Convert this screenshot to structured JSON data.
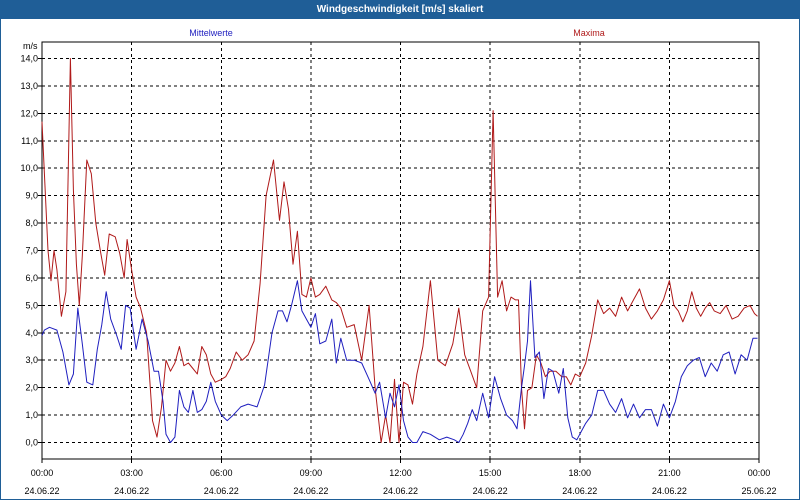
{
  "window": {
    "title": "Windgeschwindigkeit [m/s] skaliert"
  },
  "colors": {
    "mean": "#1f1fbf",
    "max": "#b01a1a",
    "title_bg": "#1f5e97",
    "grid": "#000000"
  },
  "chart_data": {
    "type": "line",
    "title": "Windgeschwindigkeit [m/s] skaliert",
    "ylabel": "m/s",
    "ylim": [
      -0.6,
      14.6
    ],
    "yticks": [
      "0,0",
      "1,0",
      "2,0",
      "3,0",
      "4,0",
      "5,0",
      "6,0",
      "7,0",
      "8,0",
      "9,0",
      "10,0",
      "11,0",
      "12,0",
      "13,0",
      "14,0"
    ],
    "xlim": [
      0,
      24
    ],
    "xticks": [
      {
        "time": "00:00",
        "date": "24.06.22"
      },
      {
        "time": "03:00",
        "date": "24.06.22"
      },
      {
        "time": "06:00",
        "date": "24.06.22"
      },
      {
        "time": "09:00",
        "date": "24.06.22"
      },
      {
        "time": "12:00",
        "date": "24.06.22"
      },
      {
        "time": "15:00",
        "date": "24.06.22"
      },
      {
        "time": "18:00",
        "date": "24.06.22"
      },
      {
        "time": "21:00",
        "date": "24.06.22"
      },
      {
        "time": "00:00",
        "date": "25.06.22"
      }
    ],
    "series": [
      {
        "name": "Mittelwerte",
        "x": [
          0,
          0.08,
          0.25,
          0.5,
          0.7,
          0.9,
          1.05,
          1.2,
          1.35,
          1.5,
          1.7,
          1.85,
          2.0,
          2.15,
          2.3,
          2.5,
          2.65,
          2.8,
          2.95,
          3.15,
          3.35,
          3.55,
          3.75,
          3.9,
          4.05,
          4.15,
          4.3,
          4.45,
          4.6,
          4.75,
          4.9,
          5.05,
          5.2,
          5.35,
          5.5,
          5.65,
          5.8,
          6.0,
          6.2,
          6.4,
          6.65,
          6.9,
          7.2,
          7.45,
          7.7,
          7.9,
          8.05,
          8.2,
          8.35,
          8.55,
          8.7,
          8.85,
          9.0,
          9.15,
          9.3,
          9.5,
          9.7,
          9.85,
          10.0,
          10.2,
          10.45,
          10.7,
          10.95,
          11.15,
          11.3,
          11.5,
          11.65,
          11.8,
          11.95,
          12.1,
          12.25,
          12.4,
          12.55,
          12.75,
          13.0,
          13.3,
          13.55,
          13.8,
          13.95,
          14.1,
          14.25,
          14.4,
          14.55,
          14.75,
          14.95,
          15.15,
          15.35,
          15.55,
          15.75,
          15.9,
          16.05,
          16.15,
          16.25,
          16.35,
          16.5,
          16.65,
          16.8,
          16.95,
          17.1,
          17.3,
          17.45,
          17.6,
          17.75,
          17.9,
          18.05,
          18.2,
          18.4,
          18.6,
          18.8,
          19.0,
          19.2,
          19.4,
          19.6,
          19.8,
          20.0,
          20.2,
          20.4,
          20.6,
          20.8,
          21.0,
          21.2,
          21.4,
          21.6,
          21.8,
          22.0,
          22.2,
          22.4,
          22.6,
          22.8,
          23.0,
          23.2,
          23.4,
          23.6,
          23.8,
          23.95
        ],
        "values": [
          3.9,
          4.1,
          4.2,
          4.1,
          3.3,
          2.1,
          2.5,
          4.9,
          3.6,
          2.2,
          2.1,
          3.4,
          4.3,
          5.5,
          4.5,
          3.9,
          3.4,
          5.0,
          4.9,
          3.4,
          4.5,
          3.7,
          2.6,
          2.6,
          1.5,
          0.3,
          0.0,
          0.2,
          1.9,
          1.3,
          1.1,
          1.9,
          1.1,
          1.2,
          1.5,
          2.2,
          1.5,
          1.0,
          0.8,
          1.0,
          1.3,
          1.4,
          1.3,
          2.1,
          4.0,
          4.8,
          4.8,
          4.4,
          5.0,
          5.9,
          4.8,
          4.5,
          4.2,
          4.7,
          3.6,
          3.7,
          4.5,
          2.9,
          3.8,
          3.0,
          3.0,
          2.9,
          2.3,
          1.8,
          2.2,
          0.9,
          1.8,
          1.3,
          2.1,
          0.8,
          0.2,
          0.0,
          0.0,
          0.4,
          0.3,
          0.1,
          0.2,
          0.1,
          0.0,
          0.3,
          0.7,
          1.2,
          0.8,
          1.8,
          0.9,
          2.4,
          1.6,
          1.0,
          0.8,
          0.5,
          2.0,
          2.8,
          3.7,
          5.9,
          3.1,
          3.3,
          1.6,
          2.7,
          2.6,
          1.8,
          2.7,
          0.9,
          0.2,
          0.1,
          0.4,
          0.7,
          1.0,
          1.9,
          1.9,
          1.4,
          1.1,
          1.6,
          0.9,
          1.4,
          0.9,
          1.2,
          1.2,
          0.6,
          1.4,
          0.9,
          1.5,
          2.4,
          2.8,
          3.0,
          3.1,
          2.4,
          2.9,
          2.6,
          3.2,
          3.3,
          2.5,
          3.2,
          3.0,
          3.8,
          3.8
        ]
      },
      {
        "name": "Maxima",
        "x": [
          0,
          0.08,
          0.2,
          0.3,
          0.4,
          0.5,
          0.65,
          0.8,
          0.95,
          1.05,
          1.15,
          1.25,
          1.35,
          1.5,
          1.65,
          1.8,
          1.95,
          2.1,
          2.25,
          2.45,
          2.6,
          2.75,
          2.85,
          3.0,
          3.15,
          3.3,
          3.5,
          3.7,
          3.85,
          4.0,
          4.15,
          4.3,
          4.45,
          4.6,
          4.75,
          4.9,
          5.05,
          5.2,
          5.35,
          5.5,
          5.65,
          5.8,
          6.0,
          6.15,
          6.3,
          6.5,
          6.7,
          6.9,
          7.1,
          7.3,
          7.5,
          7.75,
          7.95,
          8.1,
          8.25,
          8.4,
          8.55,
          8.7,
          8.85,
          9.0,
          9.15,
          9.3,
          9.5,
          9.7,
          9.85,
          10.0,
          10.2,
          10.45,
          10.7,
          10.95,
          11.15,
          11.35,
          11.5,
          11.65,
          11.8,
          11.95,
          12.1,
          12.25,
          12.4,
          12.55,
          12.75,
          13.0,
          13.25,
          13.5,
          13.75,
          13.95,
          14.15,
          14.35,
          14.55,
          14.75,
          14.95,
          15.1,
          15.25,
          15.4,
          15.55,
          15.7,
          15.85,
          15.95,
          16.05,
          16.15,
          16.25,
          16.4,
          16.55,
          16.7,
          16.85,
          17.0,
          17.2,
          17.4,
          17.55,
          17.7,
          17.85,
          18.0,
          18.2,
          18.4,
          18.6,
          18.8,
          19.0,
          19.2,
          19.4,
          19.6,
          19.8,
          20.0,
          20.2,
          20.4,
          20.6,
          20.8,
          21.0,
          21.15,
          21.3,
          21.45,
          21.6,
          21.75,
          21.9,
          22.05,
          22.2,
          22.35,
          22.5,
          22.7,
          22.9,
          23.1,
          23.3,
          23.5,
          23.7,
          23.85,
          23.95
        ],
        "values": [
          11.7,
          9.8,
          7.0,
          5.9,
          7.0,
          6.3,
          4.6,
          5.5,
          14.0,
          9.2,
          6.5,
          5.0,
          6.8,
          10.3,
          9.8,
          8.0,
          7.0,
          6.1,
          7.6,
          7.5,
          6.9,
          6.0,
          7.4,
          6.3,
          5.3,
          4.9,
          4.0,
          0.8,
          0.2,
          1.3,
          3.0,
          2.6,
          2.9,
          3.5,
          2.8,
          2.9,
          2.7,
          2.5,
          3.5,
          3.2,
          2.5,
          2.2,
          2.3,
          2.4,
          2.7,
          3.3,
          3.0,
          3.2,
          3.7,
          5.8,
          9.0,
          10.3,
          8.1,
          9.5,
          8.5,
          6.5,
          7.7,
          5.4,
          5.3,
          6.0,
          5.3,
          5.4,
          5.7,
          5.2,
          5.1,
          4.9,
          4.2,
          4.3,
          3.0,
          5.0,
          2.0,
          0.0,
          1.0,
          0.0,
          2.3,
          0.0,
          2.2,
          2.1,
          1.4,
          2.5,
          3.5,
          5.9,
          3.0,
          2.8,
          3.6,
          4.9,
          3.2,
          2.6,
          2.0,
          4.8,
          5.3,
          12.1,
          5.3,
          5.9,
          4.8,
          5.3,
          5.2,
          5.2,
          2.0,
          0.5,
          1.9,
          2.0,
          3.2,
          2.9,
          2.4,
          2.6,
          2.6,
          2.4,
          2.4,
          2.1,
          2.5,
          2.4,
          2.9,
          3.9,
          5.2,
          4.7,
          4.9,
          4.6,
          5.3,
          4.8,
          5.2,
          5.6,
          4.9,
          4.5,
          4.8,
          5.2,
          5.9,
          5.0,
          4.8,
          4.4,
          4.8,
          5.5,
          4.9,
          4.6,
          4.9,
          5.1,
          4.8,
          4.7,
          5.0,
          4.5,
          4.6,
          4.9,
          5.0,
          4.7,
          4.6
        ]
      }
    ]
  }
}
